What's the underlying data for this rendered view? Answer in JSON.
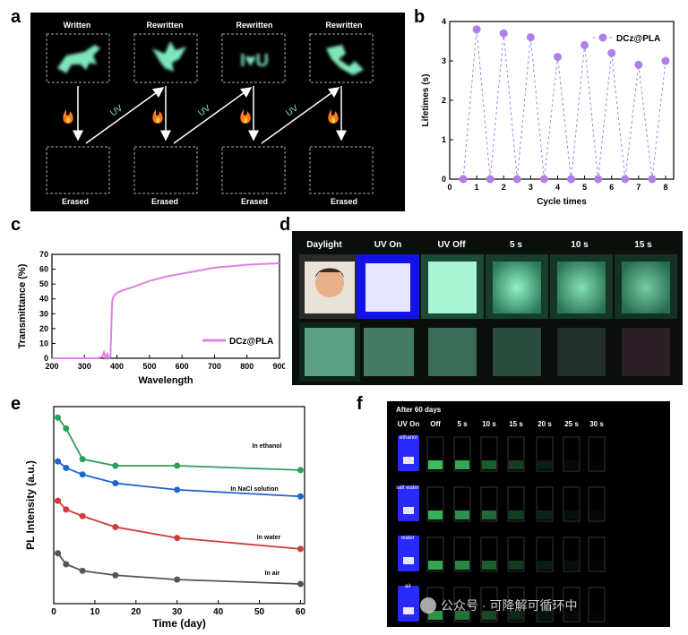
{
  "panel_labels": {
    "a": "a",
    "b": "b",
    "c": "c",
    "d": "d",
    "e": "e",
    "f": "f"
  },
  "panel_a": {
    "top_labels": [
      "Written",
      "Rewritten",
      "Rewritten",
      "Rewritten"
    ],
    "bottom_labels": [
      "Erased",
      "Erased",
      "Erased",
      "Erased"
    ],
    "arrow_label": "UV",
    "pattern_text": "I♥U",
    "colors": {
      "background": "#000000",
      "glow": "#6fe0b0",
      "arrow": "#ffffff",
      "flame": "#ff7a1a"
    }
  },
  "panel_d": {
    "column_labels": [
      "Daylight",
      "UV On",
      "UV Off",
      "5 s",
      "10  s",
      "15 s"
    ],
    "colors": {
      "uv": "#1a1aff",
      "glow": "#6fe8b8"
    }
  },
  "panel_f": {
    "title": "After 60 days",
    "column_labels": [
      "UV On",
      "Off",
      "5 s",
      "10 s",
      "15 s",
      "20 s",
      "25 s",
      "30 s"
    ],
    "row_labels": [
      "ethanol",
      "salt water",
      "water",
      "air"
    ],
    "watermark": "公众号 · 可降解可循环中",
    "colors": {
      "uv": "#2a2aff",
      "glow": "#3fcf6a"
    }
  },
  "chart_data": [
    {
      "panel": "b",
      "type": "line",
      "xlabel": "Cycle times",
      "ylabel": "Lifetimes (s)",
      "xlim": [
        0,
        8.3
      ],
      "ylim": [
        0,
        4
      ],
      "x_ticks": [
        0,
        1,
        2,
        3,
        4,
        5,
        6,
        7,
        8
      ],
      "y_ticks": [
        0,
        1,
        2,
        3,
        4
      ],
      "legend_position": "top-right",
      "series": [
        {
          "name": "DCz@PLA",
          "color": "#b07ee6",
          "x": [
            0.5,
            1,
            1.5,
            2,
            2.5,
            3,
            3.5,
            4,
            4.5,
            5,
            5.5,
            6,
            6.5,
            7,
            7.5,
            8
          ],
          "y": [
            0,
            3.8,
            0,
            3.7,
            0,
            3.6,
            0,
            3.1,
            0,
            3.4,
            0,
            3.2,
            0,
            2.9,
            0,
            3.0
          ]
        }
      ]
    },
    {
      "panel": "c",
      "type": "line",
      "xlabel": "Wavelength",
      "ylabel": "Transmittance (%)",
      "xlim": [
        200,
        900
      ],
      "ylim": [
        0,
        70
      ],
      "x_ticks": [
        200,
        300,
        400,
        500,
        600,
        700,
        800,
        900
      ],
      "y_ticks": [
        0,
        10,
        20,
        30,
        40,
        50,
        60,
        70
      ],
      "legend_position": "bottom-right",
      "series": [
        {
          "name": "DCz@PLA",
          "color": "#e080e8",
          "x": [
            200,
            340,
            355,
            360,
            365,
            370,
            375,
            380,
            385,
            390,
            400,
            420,
            450,
            500,
            550,
            600,
            650,
            700,
            750,
            800,
            850,
            900
          ],
          "y": [
            0,
            0,
            1,
            4,
            0,
            3,
            0,
            1,
            38,
            42,
            44,
            46,
            48,
            52,
            55,
            57,
            59,
            61,
            62,
            63,
            63.5,
            64
          ]
        }
      ]
    },
    {
      "panel": "e",
      "type": "line",
      "xlabel": "Time (day)",
      "ylabel": "PL Intensity (a.u.)",
      "xlim": [
        0,
        61
      ],
      "x_ticks": [
        0,
        10,
        20,
        30,
        40,
        50,
        60
      ],
      "y_ticks": [],
      "annotations": [
        "In ethanol",
        "In NaCl solution",
        "In water",
        "In air"
      ],
      "series": [
        {
          "name": "In ethanol",
          "color": "#2e9e5b",
          "x": [
            1,
            3,
            7,
            15,
            30,
            60
          ],
          "y": [
            0.95,
            0.9,
            0.76,
            0.73,
            0.73,
            0.71
          ]
        },
        {
          "name": "In NaCl solution",
          "color": "#1f66c9",
          "x": [
            1,
            3,
            7,
            15,
            30,
            60
          ],
          "y": [
            0.75,
            0.72,
            0.69,
            0.65,
            0.62,
            0.59
          ]
        },
        {
          "name": "In water",
          "color": "#d13a3a",
          "x": [
            1,
            3,
            7,
            15,
            30,
            60
          ],
          "y": [
            0.57,
            0.53,
            0.5,
            0.45,
            0.4,
            0.35
          ]
        },
        {
          "name": "In air",
          "color": "#555555",
          "x": [
            1,
            3,
            7,
            15,
            30,
            60
          ],
          "y": [
            0.33,
            0.28,
            0.25,
            0.23,
            0.21,
            0.19
          ]
        }
      ]
    }
  ]
}
